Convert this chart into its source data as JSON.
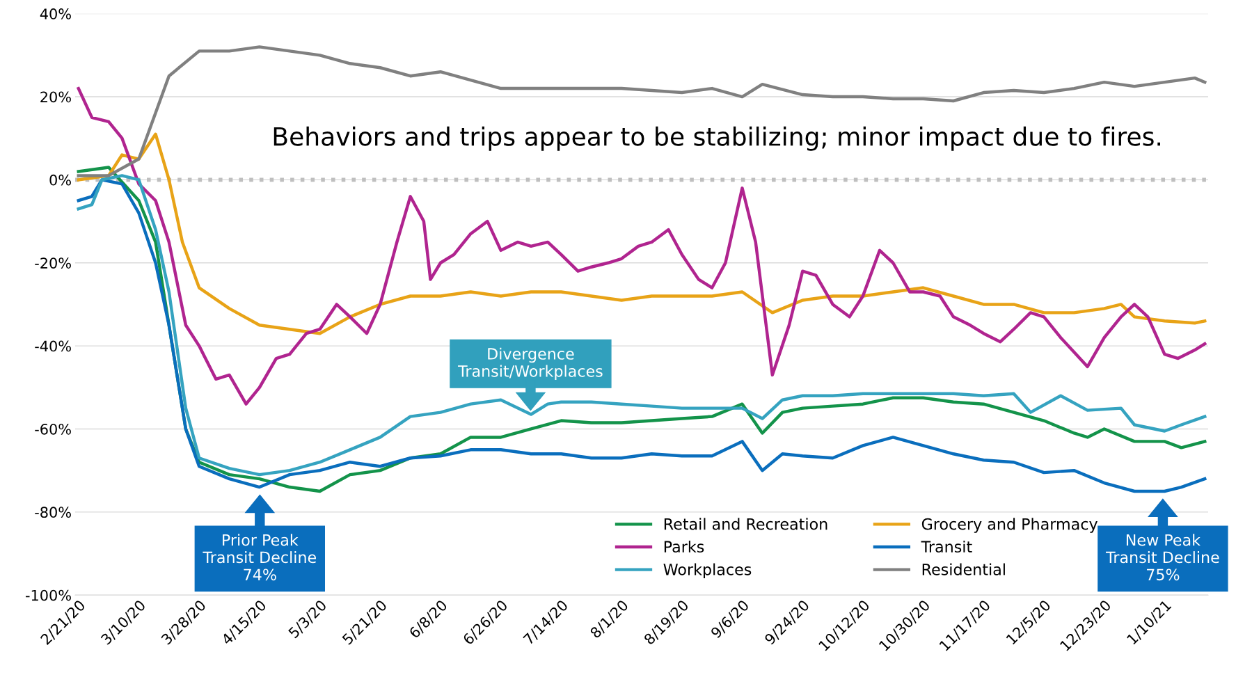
{
  "chart_data": {
    "type": "line",
    "ylim": [
      -100,
      40
    ],
    "yticks": [
      {
        "value": -100,
        "label": "-100%"
      },
      {
        "value": -80,
        "label": "-80%"
      },
      {
        "value": -60,
        "label": "-60%"
      },
      {
        "value": -40,
        "label": "-40%"
      },
      {
        "value": -20,
        "label": "-20%"
      },
      {
        "value": 0,
        "label": "0%"
      },
      {
        "value": 20,
        "label": "20%"
      },
      {
        "value": 40,
        "label": "40%"
      }
    ],
    "xlim": [
      "2020-02-20",
      "2021-01-23"
    ],
    "xticks": [
      {
        "value": "2020-02-21",
        "label": "2/21/20"
      },
      {
        "value": "2020-03-10",
        "label": "3/10/20"
      },
      {
        "value": "2020-03-28",
        "label": "3/28/20"
      },
      {
        "value": "2020-04-15",
        "label": "4/15/20"
      },
      {
        "value": "2020-05-03",
        "label": "5/3/20"
      },
      {
        "value": "2020-05-21",
        "label": "5/21/20"
      },
      {
        "value": "2020-06-08",
        "label": "6/8/20"
      },
      {
        "value": "2020-06-26",
        "label": "6/26/20"
      },
      {
        "value": "2020-07-14",
        "label": "7/14/20"
      },
      {
        "value": "2020-08-01",
        "label": "8/1/20"
      },
      {
        "value": "2020-08-19",
        "label": "8/19/20"
      },
      {
        "value": "2020-09-06",
        "label": "9/6/20"
      },
      {
        "value": "2020-09-24",
        "label": "9/24/20"
      },
      {
        "value": "2020-10-12",
        "label": "10/12/20"
      },
      {
        "value": "2020-10-30",
        "label": "10/30/20"
      },
      {
        "value": "2020-11-17",
        "label": "11/17/20"
      },
      {
        "value": "2020-12-05",
        "label": "12/5/20"
      },
      {
        "value": "2020-12-23",
        "label": "12/23/20"
      },
      {
        "value": "2021-01-10",
        "label": "1/10/21"
      }
    ],
    "grid": "y",
    "legend": "bottom right",
    "marker": "none",
    "line_style": "solid",
    "ref_lines": [
      {
        "axis": "y",
        "value": 0,
        "color": "#bfbfbf",
        "line_style": "dotted"
      }
    ],
    "annotations": [
      "Behaviors and trips appear to be stabilizing; minor impact due to fires.",
      "Divergence\nTransit/Workplaces",
      "Prior Peak\nTransit Decline\n74%",
      "New Peak\nTransit Decline\n75%"
    ],
    "series": [
      {
        "name": "Retail and Recreation",
        "color": "#13934a",
        "x": [
          "2020-02-21",
          "2020-03-01",
          "2020-03-10",
          "2020-03-15",
          "2020-03-19",
          "2020-03-24",
          "2020-03-28",
          "2020-04-06",
          "2020-04-15",
          "2020-04-24",
          "2020-05-03",
          "2020-05-12",
          "2020-05-21",
          "2020-05-30",
          "2020-06-08",
          "2020-06-17",
          "2020-06-26",
          "2020-07-05",
          "2020-07-14",
          "2020-07-23",
          "2020-08-01",
          "2020-08-10",
          "2020-08-19",
          "2020-08-28",
          "2020-09-06",
          "2020-09-12",
          "2020-09-18",
          "2020-09-24",
          "2020-10-03",
          "2020-10-12",
          "2020-10-21",
          "2020-10-30",
          "2020-11-08",
          "2020-11-17",
          "2020-11-26",
          "2020-12-05",
          "2020-12-14",
          "2020-12-18",
          "2020-12-23",
          "2021-01-01",
          "2021-01-10",
          "2021-01-15",
          "2021-01-22"
        ],
        "values": [
          2,
          3,
          -5,
          -15,
          -35,
          -60,
          -68,
          -71,
          -72,
          -74,
          -75,
          -71,
          -70,
          -67,
          -66,
          -62,
          -62,
          -60,
          -58,
          -58.5,
          -58.5,
          -58,
          -57.5,
          -57,
          -54,
          -61,
          -56,
          -55,
          -54.5,
          -54,
          -52.5,
          -52.5,
          -53.5,
          -54,
          -56,
          -58,
          -61,
          -62,
          -60,
          -63,
          -63,
          -64.5,
          -63
        ]
      },
      {
        "name": "Grocery and Pharmacy",
        "color": "#e8a317",
        "x": [
          "2020-02-21",
          "2020-03-01",
          "2020-03-05",
          "2020-03-10",
          "2020-03-15",
          "2020-03-19",
          "2020-03-23",
          "2020-03-28",
          "2020-04-06",
          "2020-04-15",
          "2020-04-24",
          "2020-05-03",
          "2020-05-12",
          "2020-05-21",
          "2020-05-30",
          "2020-06-08",
          "2020-06-17",
          "2020-06-26",
          "2020-07-05",
          "2020-07-14",
          "2020-07-23",
          "2020-08-01",
          "2020-08-10",
          "2020-08-19",
          "2020-08-28",
          "2020-09-06",
          "2020-09-15",
          "2020-09-24",
          "2020-10-03",
          "2020-10-12",
          "2020-10-21",
          "2020-10-30",
          "2020-11-08",
          "2020-11-17",
          "2020-11-26",
          "2020-12-05",
          "2020-12-14",
          "2020-12-23",
          "2020-12-28",
          "2021-01-01",
          "2021-01-10",
          "2021-01-19",
          "2021-01-22"
        ],
        "values": [
          0,
          1,
          6,
          5,
          11,
          0,
          -15,
          -26,
          -31,
          -35,
          -36,
          -37,
          -33,
          -30,
          -28,
          -28,
          -27,
          -28,
          -27,
          -27,
          -28,
          -29,
          -28,
          -28,
          -28,
          -27,
          -32,
          -29,
          -28,
          -28,
          -27,
          -26,
          -28,
          -30,
          -30,
          -32,
          -32,
          -31,
          -30,
          -33,
          -34,
          -34.5,
          -34
        ]
      },
      {
        "name": "Parks",
        "color": "#b0248f",
        "x": [
          "2020-02-21",
          "2020-02-25",
          "2020-03-01",
          "2020-03-05",
          "2020-03-10",
          "2020-03-15",
          "2020-03-19",
          "2020-03-24",
          "2020-03-28",
          "2020-04-02",
          "2020-04-06",
          "2020-04-11",
          "2020-04-15",
          "2020-04-20",
          "2020-04-24",
          "2020-04-29",
          "2020-05-03",
          "2020-05-08",
          "2020-05-12",
          "2020-05-17",
          "2020-05-21",
          "2020-05-26",
          "2020-05-30",
          "2020-06-03",
          "2020-06-05",
          "2020-06-08",
          "2020-06-12",
          "2020-06-17",
          "2020-06-22",
          "2020-06-26",
          "2020-07-01",
          "2020-07-05",
          "2020-07-10",
          "2020-07-14",
          "2020-07-19",
          "2020-07-23",
          "2020-07-28",
          "2020-08-01",
          "2020-08-06",
          "2020-08-10",
          "2020-08-15",
          "2020-08-19",
          "2020-08-24",
          "2020-08-28",
          "2020-09-01",
          "2020-09-06",
          "2020-09-10",
          "2020-09-15",
          "2020-09-20",
          "2020-09-24",
          "2020-09-28",
          "2020-10-03",
          "2020-10-08",
          "2020-10-12",
          "2020-10-17",
          "2020-10-21",
          "2020-10-26",
          "2020-10-30",
          "2020-11-04",
          "2020-11-08",
          "2020-11-13",
          "2020-11-17",
          "2020-11-22",
          "2020-11-26",
          "2020-12-01",
          "2020-12-05",
          "2020-12-10",
          "2020-12-18",
          "2020-12-23",
          "2020-12-28",
          "2021-01-01",
          "2021-01-05",
          "2021-01-10",
          "2021-01-14",
          "2021-01-19",
          "2021-01-22"
        ],
        "values": [
          22,
          15,
          14,
          10,
          -1,
          -5,
          -15,
          -35,
          -40,
          -48,
          -47,
          -54,
          -50,
          -43,
          -42,
          -37,
          -36,
          -30,
          -33,
          -37,
          -30,
          -15,
          -4,
          -10,
          -24,
          -20,
          -18,
          -13,
          -10,
          -17,
          -15,
          -16,
          -15,
          -18,
          -22,
          -21,
          -20,
          -19,
          -16,
          -15,
          -12,
          -18,
          -24,
          -26,
          -20,
          -2,
          -15,
          -47,
          -35,
          -22,
          -23,
          -30,
          -33,
          -28,
          -17,
          -20,
          -27,
          -27,
          -28,
          -33,
          -35,
          -37,
          -39,
          -36,
          -32,
          -33,
          -38,
          -45,
          -38,
          -33,
          -30,
          -33,
          -42,
          -43,
          -41,
          -39.5
        ]
      },
      {
        "name": "Transit",
        "color": "#0a6ebd",
        "x": [
          "2020-02-21",
          "2020-02-25",
          "2020-02-28",
          "2020-03-05",
          "2020-03-10",
          "2020-03-15",
          "2020-03-19",
          "2020-03-24",
          "2020-03-28",
          "2020-04-06",
          "2020-04-15",
          "2020-04-24",
          "2020-05-03",
          "2020-05-12",
          "2020-05-21",
          "2020-05-30",
          "2020-06-08",
          "2020-06-17",
          "2020-06-26",
          "2020-07-05",
          "2020-07-14",
          "2020-07-23",
          "2020-08-01",
          "2020-08-10",
          "2020-08-19",
          "2020-08-28",
          "2020-09-06",
          "2020-09-12",
          "2020-09-18",
          "2020-09-24",
          "2020-10-03",
          "2020-10-12",
          "2020-10-21",
          "2020-10-30",
          "2020-11-08",
          "2020-11-17",
          "2020-11-26",
          "2020-12-05",
          "2020-12-14",
          "2020-12-23",
          "2021-01-01",
          "2021-01-10",
          "2021-01-15",
          "2021-01-22"
        ],
        "values": [
          -5,
          -4,
          0,
          -1,
          -8,
          -20,
          -35,
          -60,
          -69,
          -72,
          -74,
          -71,
          -70,
          -68,
          -69,
          -67,
          -66.5,
          -65,
          -65,
          -66,
          -66,
          -67,
          -67,
          -66,
          -66.5,
          -66.5,
          -63,
          -70,
          -66,
          -66.5,
          -67,
          -64,
          -62,
          -64,
          -66,
          -67.5,
          -68,
          -70.5,
          -70,
          -73,
          -75,
          -75,
          -74,
          -72
        ]
      },
      {
        "name": "Workplaces",
        "color": "#35a3c0",
        "x": [
          "2020-02-21",
          "2020-02-25",
          "2020-02-28",
          "2020-03-05",
          "2020-03-10",
          "2020-03-15",
          "2020-03-19",
          "2020-03-24",
          "2020-03-28",
          "2020-04-06",
          "2020-04-15",
          "2020-04-24",
          "2020-05-03",
          "2020-05-12",
          "2020-05-21",
          "2020-05-30",
          "2020-06-08",
          "2020-06-17",
          "2020-06-26",
          "2020-07-05",
          "2020-07-10",
          "2020-07-14",
          "2020-07-23",
          "2020-08-01",
          "2020-08-10",
          "2020-08-19",
          "2020-08-28",
          "2020-09-06",
          "2020-09-12",
          "2020-09-18",
          "2020-09-24",
          "2020-10-03",
          "2020-10-12",
          "2020-10-21",
          "2020-10-30",
          "2020-11-08",
          "2020-11-17",
          "2020-11-26",
          "2020-12-01",
          "2020-12-10",
          "2020-12-18",
          "2020-12-28",
          "2021-01-01",
          "2021-01-10",
          "2021-01-15",
          "2021-01-22"
        ],
        "values": [
          -7,
          -6,
          0,
          1,
          0,
          -12,
          -27,
          -55,
          -67,
          -69.5,
          -71,
          -70,
          -68,
          -65,
          -62,
          -57,
          -56,
          -54,
          -53,
          -56.5,
          -54,
          -53.5,
          -53.5,
          -54,
          -54.5,
          -55,
          -55,
          -55,
          -57.5,
          -53,
          -52,
          -52,
          -51.5,
          -51.5,
          -51.5,
          -51.5,
          -52,
          -51.5,
          -56,
          -52,
          -55.5,
          -55,
          -59,
          -60.5,
          -59,
          -57
        ]
      },
      {
        "name": "Residential",
        "color": "#808080",
        "x": [
          "2020-02-21",
          "2020-03-01",
          "2020-03-10",
          "2020-03-19",
          "2020-03-28",
          "2020-04-06",
          "2020-04-15",
          "2020-04-24",
          "2020-05-03",
          "2020-05-12",
          "2020-05-21",
          "2020-05-30",
          "2020-06-08",
          "2020-06-17",
          "2020-06-26",
          "2020-07-05",
          "2020-07-14",
          "2020-07-23",
          "2020-08-01",
          "2020-08-10",
          "2020-08-19",
          "2020-08-28",
          "2020-09-06",
          "2020-09-12",
          "2020-09-24",
          "2020-10-03",
          "2020-10-12",
          "2020-10-21",
          "2020-10-30",
          "2020-11-08",
          "2020-11-17",
          "2020-11-26",
          "2020-12-05",
          "2020-12-14",
          "2020-12-23",
          "2021-01-01",
          "2021-01-10",
          "2021-01-19",
          "2021-01-22"
        ],
        "values": [
          1,
          1,
          5,
          25,
          31,
          31,
          32,
          31,
          30,
          28,
          27,
          25,
          26,
          24,
          22,
          22,
          22,
          22,
          22,
          21.5,
          21,
          22,
          20,
          23,
          20.5,
          20,
          20,
          19.5,
          19.5,
          19,
          21,
          21.5,
          21,
          22,
          23.5,
          22.5,
          23.5,
          24.5,
          23.5
        ]
      }
    ]
  }
}
